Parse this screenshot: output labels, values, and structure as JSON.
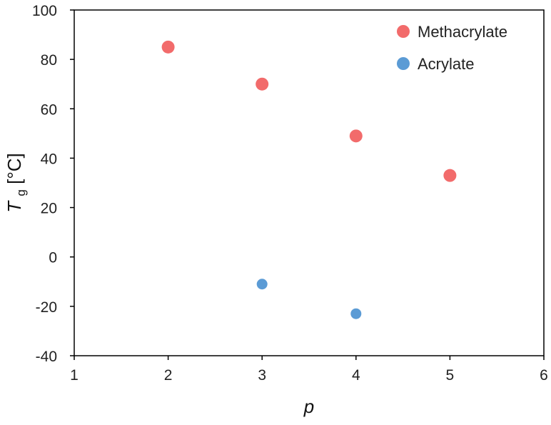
{
  "chart_data": {
    "type": "scatter",
    "xlabel": "p",
    "ylabel": {
      "main": "T",
      "subscript": "g",
      "unit": " [°C]"
    },
    "xlim": [
      1,
      6
    ],
    "ylim": [
      -40,
      100
    ],
    "xticks": [
      1,
      2,
      3,
      4,
      5,
      6
    ],
    "yticks": [
      -40,
      -20,
      0,
      20,
      40,
      60,
      80,
      100
    ],
    "grid": false,
    "legend_position": "top-right",
    "series": [
      {
        "name": "Methacrylate",
        "color": "#f26b6b",
        "points": [
          {
            "x": 2,
            "y": 85
          },
          {
            "x": 3,
            "y": 70
          },
          {
            "x": 4,
            "y": 49
          },
          {
            "x": 5,
            "y": 33
          }
        ]
      },
      {
        "name": "Acrylate",
        "color": "#5b9bd5",
        "points": [
          {
            "x": 3,
            "y": -11
          },
          {
            "x": 4,
            "y": -23
          }
        ]
      }
    ]
  }
}
